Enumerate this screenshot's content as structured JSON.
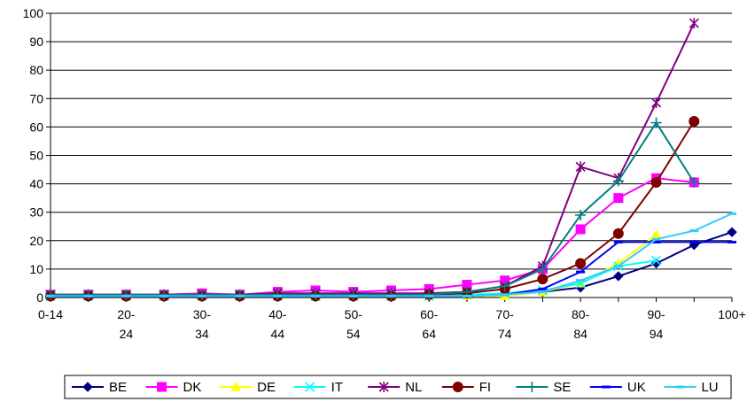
{
  "chart_data": {
    "type": "line",
    "title": "",
    "xlabel": "",
    "ylabel": "",
    "ylim": [
      0,
      100
    ],
    "yticks": [
      0,
      10,
      20,
      30,
      40,
      50,
      60,
      70,
      80,
      90,
      100
    ],
    "grid": "horizontal",
    "legend_position": "bottom",
    "x_tick_labels": [
      [
        "0-14"
      ],
      [
        ""
      ],
      [
        "20-",
        "24"
      ],
      [
        ""
      ],
      [
        "30-",
        "34"
      ],
      [
        ""
      ],
      [
        "40-",
        "44"
      ],
      [
        ""
      ],
      [
        "50-",
        "54"
      ],
      [
        ""
      ],
      [
        "60-",
        "64"
      ],
      [
        ""
      ],
      [
        "70-",
        "74"
      ],
      [
        ""
      ],
      [
        "80-",
        "84"
      ],
      [
        ""
      ],
      [
        "90-",
        "94"
      ],
      [
        ""
      ],
      [
        "100+"
      ]
    ],
    "series": [
      {
        "name": "BE",
        "color": "#000080",
        "marker": "diamond",
        "values": [
          0.5,
          0.5,
          0.5,
          0.5,
          0.5,
          0.5,
          0.5,
          0.5,
          0.5,
          0.5,
          0.5,
          0.5,
          1,
          2,
          3.5,
          7.5,
          12,
          18.5,
          23
        ]
      },
      {
        "name": "DK",
        "color": "#FF00FF",
        "marker": "square",
        "values": [
          1,
          1,
          1,
          1,
          1.5,
          1,
          2,
          2.5,
          2,
          2.5,
          3,
          4.5,
          6,
          10,
          24,
          35,
          42,
          40.5,
          null
        ]
      },
      {
        "name": "DE",
        "color": "#FFFF00",
        "marker": "triangle",
        "values": [
          0.5,
          0.5,
          0.5,
          0.5,
          0.5,
          0.5,
          0.5,
          0.5,
          0.5,
          0.5,
          0.5,
          0.5,
          0.5,
          2,
          5,
          12,
          22,
          null,
          null
        ]
      },
      {
        "name": "IT",
        "color": "#00FFFF",
        "marker": "x",
        "values": [
          0.5,
          0.5,
          0.5,
          0.5,
          0.5,
          0.5,
          0.5,
          0.5,
          0.5,
          0.5,
          0.5,
          1,
          1.5,
          2.5,
          5,
          11,
          13,
          null,
          null
        ]
      },
      {
        "name": "NL",
        "color": "#800080",
        "marker": "star",
        "values": [
          1,
          1,
          1,
          1,
          1,
          1,
          1.5,
          1.5,
          1.5,
          1.5,
          1.5,
          2,
          4,
          11,
          46,
          42,
          68.5,
          96.5,
          null
        ]
      },
      {
        "name": "FI",
        "color": "#800000",
        "marker": "circle",
        "values": [
          0.5,
          0.5,
          0.5,
          0.5,
          0.5,
          0.5,
          0.5,
          0.5,
          0.5,
          0.5,
          1,
          1.5,
          3,
          6.5,
          12,
          22.5,
          40.5,
          62,
          null
        ]
      },
      {
        "name": "SE",
        "color": "#008080",
        "marker": "plus",
        "values": [
          1,
          1,
          1,
          1,
          1,
          1,
          1,
          1,
          1,
          1,
          1,
          2,
          4,
          10,
          29,
          41,
          61.5,
          40.5,
          null
        ]
      },
      {
        "name": "UK",
        "color": "#0000FF",
        "marker": "dash",
        "values": [
          0.5,
          0.5,
          0.5,
          0.5,
          0.5,
          0.5,
          0.5,
          0.5,
          0.5,
          0.5,
          0.5,
          0.5,
          1,
          3,
          9,
          19.5,
          19.5,
          19.5,
          19.5
        ]
      },
      {
        "name": "LU",
        "color": "#33CCFF",
        "marker": "dash",
        "values": [
          0.5,
          0.5,
          0.5,
          0.5,
          0.5,
          0.5,
          0.5,
          0.5,
          0.5,
          0.5,
          0.5,
          0.5,
          1,
          2,
          6,
          11,
          20.5,
          23.5,
          29.5
        ]
      }
    ]
  }
}
